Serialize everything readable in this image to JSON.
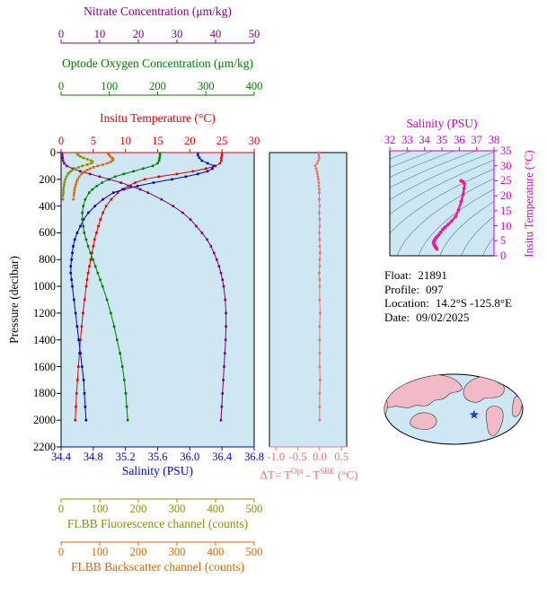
{
  "colors": {
    "plot_bg": "#cde7f3",
    "nitrate": "#800080",
    "oxygen": "#007a00",
    "temperature": "#e80000",
    "salinity": "#0000cc",
    "fluorescence": "#8f8f00",
    "backscatter": "#e06500",
    "delta_t": "#ef7070",
    "magenta_axis": "#cc00cc",
    "ts_curve": "#ff1493",
    "isopycnal": "#64909e",
    "pressure_axis": "#000000",
    "map_land": "#f2b9c6",
    "map_ocean": "#cde7f3",
    "map_star": "#2b3bc4"
  },
  "axes": {
    "pressure": {
      "label": "Pressure (decibar)",
      "range": [
        0,
        2200
      ],
      "ticks": [
        0,
        200,
        400,
        600,
        800,
        1000,
        1200,
        1400,
        1600,
        1800,
        2000,
        2200
      ]
    },
    "nitrate": {
      "label": "Nitrate Concentration (μm/kg)",
      "range": [
        0,
        50
      ],
      "ticks": [
        "0",
        "10",
        "20",
        "30",
        "40",
        "50"
      ]
    },
    "oxygen": {
      "label": "Optode Oxygen Concentration (μm/kg)",
      "range": [
        0,
        400
      ],
      "ticks": [
        "0",
        "100",
        "200",
        "300",
        "400"
      ]
    },
    "temperature": {
      "label": "Insitu Temperature (°C)",
      "range": [
        0,
        30
      ],
      "ticks": [
        "0",
        "5",
        "10",
        "15",
        "20",
        "25",
        "30"
      ]
    },
    "salinity": {
      "label": "Salinity (PSU)",
      "range": [
        34.4,
        36.8
      ],
      "ticks": [
        "34.4",
        "34.8",
        "35.2",
        "35.6",
        "36.0",
        "36.4",
        "36.8"
      ]
    },
    "fluorescence": {
      "label": "FLBB Fluorescence channel (counts)",
      "range": [
        0,
        500
      ],
      "ticks": [
        "0",
        "100",
        "200",
        "300",
        "400",
        "500"
      ]
    },
    "backscatter": {
      "label": "FLBB Backscatter channel (counts)",
      "range": [
        0,
        500
      ],
      "ticks": [
        "0",
        "100",
        "200",
        "300",
        "400",
        "500"
      ]
    },
    "delta_t": {
      "range": [
        -1.15,
        0.62
      ],
      "ticks": [
        "-1.0",
        "-0.5",
        "0.0",
        "0.5"
      ],
      "title_parts": {
        "p1": "ΔT= T",
        "sup1": "Opt",
        "p2": " - T",
        "sup2": "SBE",
        "p3": " (°C)"
      }
    },
    "ts_salinity": {
      "label": "Salinity (PSU)",
      "range": [
        32,
        38
      ],
      "ticks": [
        "32",
        "33",
        "34",
        "35",
        "36",
        "37",
        "38"
      ]
    },
    "ts_temperature": {
      "label": "Insitu Temperature (°C)",
      "range": [
        0,
        35
      ],
      "ticks": [
        "0",
        "5",
        "10",
        "15",
        "20",
        "25",
        "30",
        "35"
      ]
    }
  },
  "info": {
    "rows": [
      {
        "label": "Float:",
        "value": "21891"
      },
      {
        "label": "Profile:",
        "value": "097"
      },
      {
        "label": "Location:",
        "value": "14.2°S -125.8°E"
      },
      {
        "label": "Date:",
        "value": "09/02/2025"
      }
    ]
  },
  "map": {
    "star_lat": -14.2,
    "star_lon": -125.8
  },
  "chart_data": [
    {
      "id": "profiles",
      "type": "line",
      "orientation": "vertical-profile",
      "ylabel": "Pressure (decibar)",
      "ylim": [
        0,
        2200
      ],
      "grid": false,
      "pressure": [
        0,
        20,
        40,
        60,
        80,
        100,
        120,
        140,
        160,
        180,
        200,
        225,
        250,
        275,
        300,
        350,
        400,
        450,
        500,
        550,
        600,
        650,
        700,
        750,
        800,
        850,
        900,
        950,
        1000,
        1100,
        1200,
        1300,
        1400,
        1500,
        1600,
        1700,
        1800,
        1900,
        2000
      ],
      "series": [
        {
          "name": "Insitu Temperature",
          "axis": "temperature",
          "units": "°C",
          "values": [
            25.0,
            25.0,
            24.9,
            24.9,
            24.7,
            24.0,
            22.5,
            20.5,
            18.0,
            15.2,
            13.0,
            11.5,
            10.4,
            9.5,
            8.8,
            7.8,
            7.0,
            6.5,
            6.1,
            5.8,
            5.5,
            5.2,
            5.0,
            4.8,
            4.6,
            4.4,
            4.2,
            4.05,
            3.9,
            3.65,
            3.4,
            3.2,
            3.0,
            2.85,
            2.7,
            2.55,
            2.4,
            2.3,
            2.2
          ]
        },
        {
          "name": "Salinity",
          "axis": "salinity",
          "units": "PSU",
          "values": [
            36.1,
            36.1,
            36.12,
            36.15,
            36.22,
            36.3,
            36.28,
            36.22,
            36.1,
            35.95,
            35.78,
            35.55,
            35.35,
            35.18,
            35.05,
            34.92,
            34.82,
            34.74,
            34.68,
            34.64,
            34.6,
            34.57,
            34.55,
            34.54,
            34.53,
            34.52,
            34.52,
            34.53,
            34.54,
            34.56,
            34.58,
            34.6,
            34.62,
            34.64,
            34.66,
            34.68,
            34.69,
            34.7,
            34.71
          ]
        },
        {
          "name": "Optode Oxygen Concentration",
          "axis": "oxygen",
          "units": "μm/kg",
          "values": [
            205,
            205,
            204,
            203,
            200,
            190,
            170,
            150,
            130,
            112,
            98,
            85,
            74,
            65,
            58,
            50,
            46,
            44,
            44,
            46,
            48,
            52,
            56,
            61,
            66,
            71,
            76,
            81,
            86,
            95,
            103,
            110,
            116,
            122,
            127,
            131,
            134,
            136,
            138
          ]
        },
        {
          "name": "Nitrate Concentration",
          "axis": "nitrate",
          "units": "μm/kg",
          "values": [
            0.3,
            0.3,
            0.4,
            0.5,
            0.8,
            1.5,
            3.0,
            5.0,
            7.5,
            10.0,
            12.5,
            15.5,
            18.0,
            20.5,
            22.5,
            26.0,
            29.0,
            31.5,
            33.5,
            35.0,
            36.5,
            37.8,
            38.8,
            39.6,
            40.3,
            40.9,
            41.4,
            41.8,
            42.1,
            42.5,
            42.7,
            42.7,
            42.6,
            42.4,
            42.2,
            42.0,
            41.8,
            41.6,
            41.4
          ]
        },
        {
          "name": "FLBB Fluorescence channel",
          "axis": "fluorescence",
          "units": "counts",
          "pressure": [
            0,
            10,
            20,
            30,
            40,
            50,
            60,
            70,
            80,
            90,
            100,
            110,
            120,
            130,
            140,
            150,
            160,
            180,
            200,
            220,
            240,
            260,
            280,
            300,
            320,
            350
          ],
          "values": [
            40,
            42,
            45,
            50,
            58,
            68,
            78,
            82,
            78,
            68,
            55,
            45,
            36,
            30,
            25,
            21,
            18,
            14,
            11,
            9,
            8,
            7,
            6,
            6,
            5,
            5
          ]
        },
        {
          "name": "FLBB Backscatter channel",
          "axis": "backscatter",
          "units": "counts",
          "pressure": [
            0,
            10,
            20,
            30,
            40,
            50,
            60,
            70,
            80,
            90,
            100,
            110,
            120,
            130,
            140,
            150,
            160,
            180,
            200,
            220,
            240,
            260,
            280,
            300,
            320,
            350
          ],
          "values": [
            120,
            122,
            125,
            128,
            132,
            135,
            133,
            128,
            120,
            108,
            95,
            84,
            75,
            68,
            62,
            57,
            53,
            47,
            43,
            40,
            38,
            36,
            35,
            34,
            33,
            32
          ]
        }
      ]
    },
    {
      "id": "delta_t",
      "type": "line",
      "xlabel": "ΔT= TOpt - TSBE (°C)",
      "xlim": [
        -1.15,
        0.62
      ],
      "ylim": [
        0,
        2200
      ],
      "pressure": [
        0,
        20,
        40,
        60,
        80,
        100,
        120,
        140,
        160,
        180,
        200,
        225,
        250,
        275,
        300,
        350,
        400,
        450,
        500,
        550,
        600,
        650,
        700,
        750,
        800,
        850,
        900,
        950,
        1000,
        1100,
        1200,
        1300,
        1400,
        1500,
        1600,
        1700,
        1800,
        1900,
        2000
      ],
      "series": [
        {
          "name": "TOpt - TSBE",
          "axis": "delta_t",
          "units": "°C",
          "values": [
            -0.02,
            -0.02,
            -0.01,
            -0.03,
            -0.06,
            -0.1,
            -0.08,
            -0.06,
            -0.05,
            -0.04,
            -0.03,
            -0.02,
            -0.02,
            -0.01,
            -0.01,
            -0.01,
            0.0,
            -0.01,
            0.0,
            0.0,
            -0.01,
            0.0,
            0.0,
            0.01,
            0.0,
            0.0,
            -0.01,
            0.0,
            0.0,
            0.0,
            0.01,
            0.0,
            0.0,
            0.0,
            0.0,
            0.01,
            0.0,
            0.0,
            0.0
          ]
        }
      ]
    },
    {
      "id": "ts_diagram",
      "type": "line",
      "xlabel": "Salinity (PSU)",
      "ylabel": "Insitu Temperature (°C)",
      "xlim": [
        32,
        38
      ],
      "ylim": [
        0,
        35
      ],
      "note": "curve uses Salinity vs Insitu Temperature pairs from the profiles chart",
      "isopycnals": [
        18,
        19,
        20,
        21,
        22,
        23,
        24,
        25,
        26,
        27,
        28,
        29,
        30,
        31
      ]
    }
  ]
}
